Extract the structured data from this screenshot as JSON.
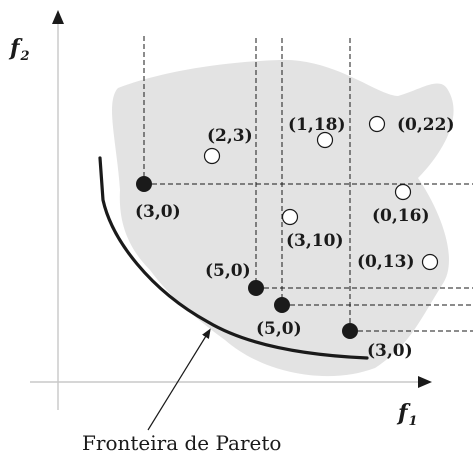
{
  "axes": {
    "y_label": "f",
    "y_subscript": "2",
    "x_label": "f",
    "x_subscript": "1"
  },
  "caption": "Fronteira de Pareto",
  "points": [
    {
      "label": "(3,0)",
      "filled": true
    },
    {
      "label": "(5,0)",
      "filled": true
    },
    {
      "label": "(5,0)",
      "filled": true
    },
    {
      "label": "(3,0)",
      "filled": true
    },
    {
      "label": "(2,3)",
      "filled": false
    },
    {
      "label": "(1,18)",
      "filled": false
    },
    {
      "label": "(0,22)",
      "filled": false
    },
    {
      "label": "(0,16)",
      "filled": false
    },
    {
      "label": "(3,10)",
      "filled": false
    },
    {
      "label": "(0,13)",
      "filled": false
    }
  ],
  "colors": {
    "region_fill": "#e3e3e3",
    "ink": "#1a1a1a",
    "axis": "#c8c8c8"
  }
}
